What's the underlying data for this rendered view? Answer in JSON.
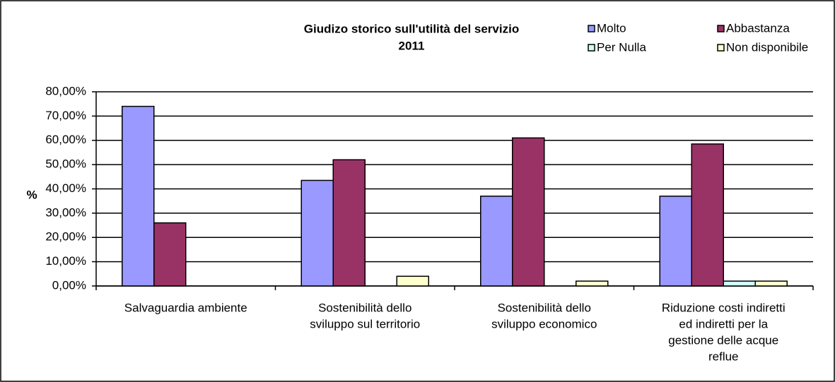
{
  "chart_data": {
    "type": "bar",
    "title": [
      "Giudizo storico sull'utilità del servizio",
      "2011"
    ],
    "y_label": "%",
    "categories": [
      [
        "Salvaguardia ambiente"
      ],
      [
        "Sostenibilità dello",
        "sviluppo sul territorio"
      ],
      [
        "Sostenibilità dello",
        "sviluppo economico"
      ],
      [
        "Riduzione costi indiretti",
        "ed indiretti per la",
        "gestione delle acque",
        "reflue"
      ]
    ],
    "series": [
      {
        "name": "Molto",
        "color": "#9999ff",
        "values": [
          74,
          43.5,
          37,
          37
        ]
      },
      {
        "name": "Abbastanza",
        "color": "#993366",
        "values": [
          26,
          52,
          61,
          58.5
        ]
      },
      {
        "name": "Per Nulla",
        "color": "#ccffff",
        "values": [
          0,
          0,
          0,
          2
        ]
      },
      {
        "name": "Non disponibile",
        "color": "#ffffcc",
        "values": [
          0,
          4,
          2,
          2
        ]
      }
    ],
    "ylim": [
      0,
      80
    ],
    "yticks": [
      {
        "value": 0,
        "label": "0,00%"
      },
      {
        "value": 10,
        "label": "10,00%"
      },
      {
        "value": 20,
        "label": "20,00%"
      },
      {
        "value": 30,
        "label": "30,00%"
      },
      {
        "value": 40,
        "label": "40,00%"
      },
      {
        "value": 50,
        "label": "50,00%"
      },
      {
        "value": 60,
        "label": "60,00%"
      },
      {
        "value": 70,
        "label": "70,00%"
      },
      {
        "value": 80,
        "label": "80,00%"
      }
    ],
    "grid": true,
    "legend": "top-right"
  }
}
